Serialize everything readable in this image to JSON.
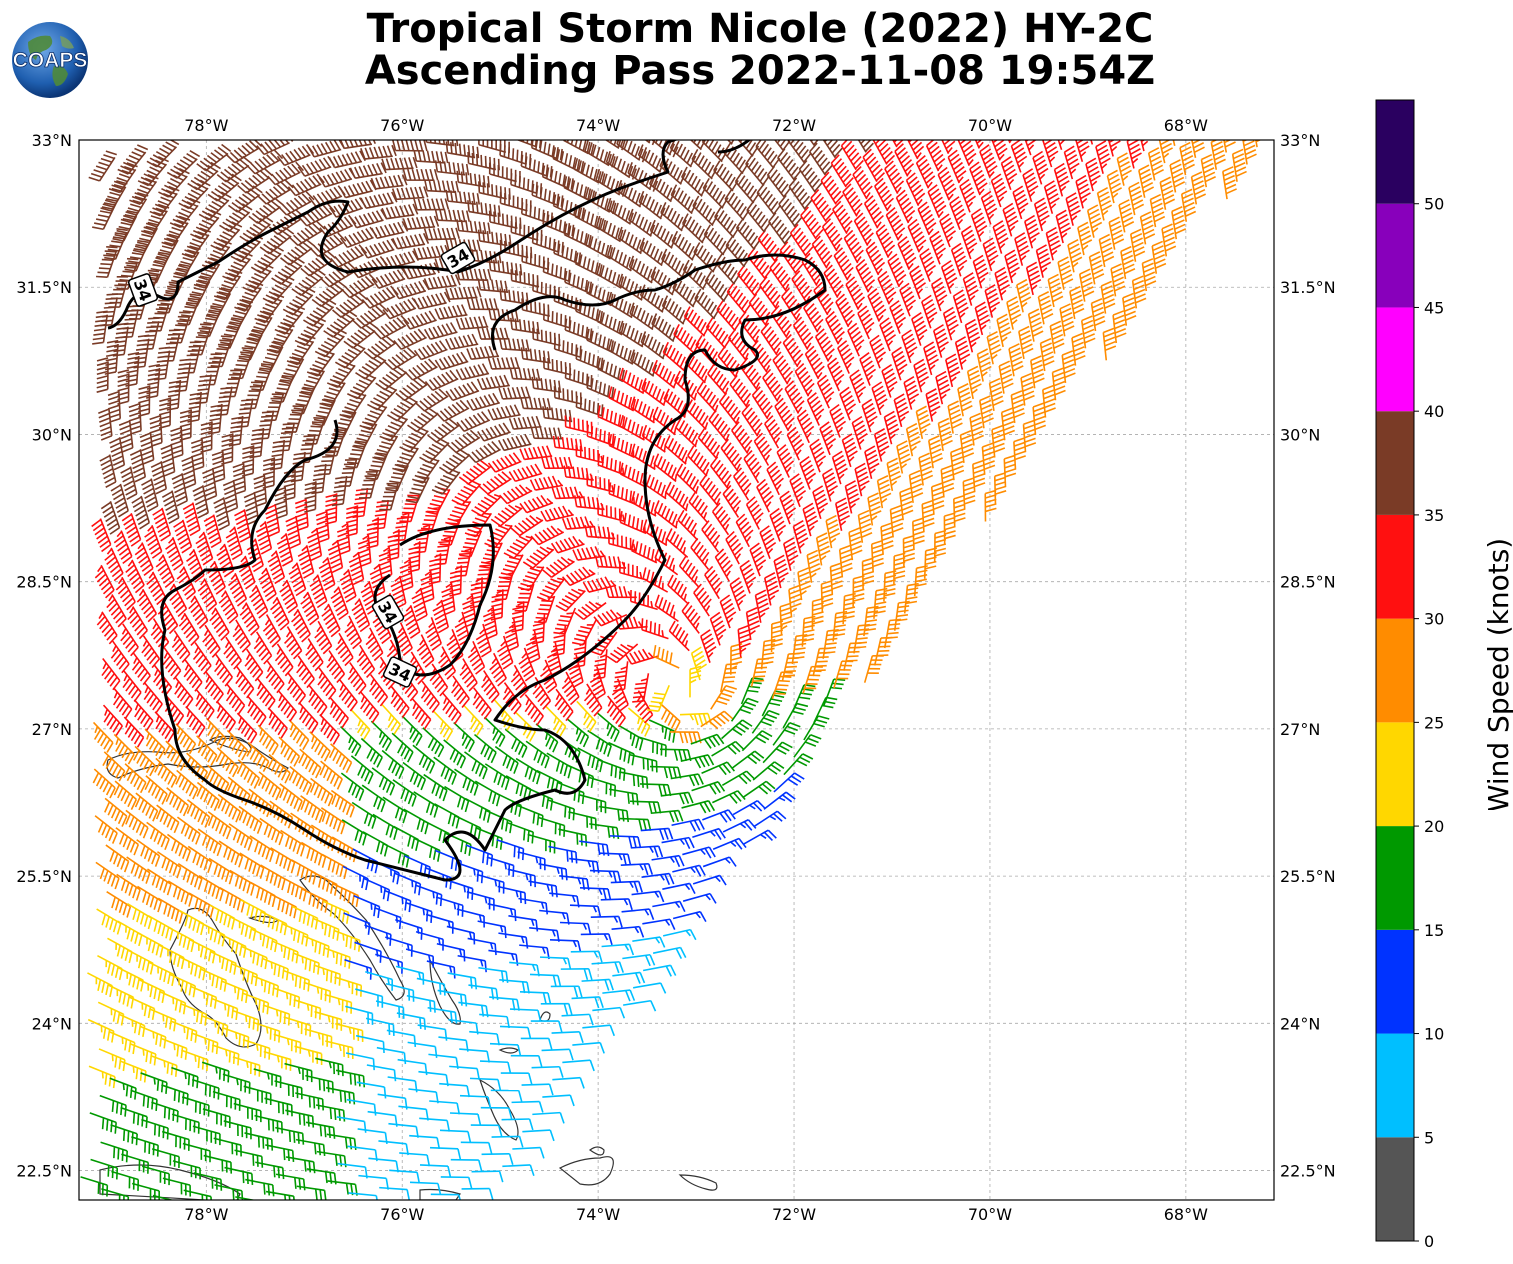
{
  "title": {
    "line1": "Tropical Storm Nicole (2022) HY-2C",
    "line2": "Ascending Pass 2022-11-08 19:54Z"
  },
  "logo": {
    "text": "COAPS",
    "icon": "globe-icon"
  },
  "map": {
    "lon_range": [
      -79.3,
      -67.1
    ],
    "lat_range": [
      22.2,
      33.0
    ],
    "x_ticks": [
      "78°W",
      "76°W",
      "74°W",
      "72°W",
      "70°W",
      "68°W"
    ],
    "x_tick_values": [
      -78,
      -76,
      -74,
      -72,
      -70,
      -68
    ],
    "y_ticks": [
      "33°N",
      "31.5°N",
      "30°N",
      "28.5°N",
      "27°N",
      "25.5°N",
      "24°N",
      "22.5°N"
    ],
    "y_tick_values": [
      33,
      31.5,
      30,
      28.5,
      27,
      25.5,
      24,
      22.5
    ],
    "gridlines": true,
    "storm_center": {
      "lon": -73.1,
      "lat": 27.3
    },
    "contour_label": "34",
    "contour_label_count": 4
  },
  "colorbar": {
    "label": "Wind Speed (knots)",
    "ticks": [
      "0",
      "5",
      "10",
      "15",
      "20",
      "25",
      "30",
      "35",
      "40",
      "45",
      "50"
    ],
    "bins": [
      {
        "min": 0,
        "max": 5,
        "color": "#555555"
      },
      {
        "min": 5,
        "max": 10,
        "color": "#00bfff"
      },
      {
        "min": 10,
        "max": 15,
        "color": "#0033ff"
      },
      {
        "min": 15,
        "max": 20,
        "color": "#009900"
      },
      {
        "min": 20,
        "max": 25,
        "color": "#ffd700"
      },
      {
        "min": 25,
        "max": 30,
        "color": "#ff8c00"
      },
      {
        "min": 30,
        "max": 35,
        "color": "#ff1010"
      },
      {
        "min": 35,
        "max": 40,
        "color": "#7a3b26"
      },
      {
        "min": 40,
        "max": 45,
        "color": "#ff00ff"
      },
      {
        "min": 45,
        "max": 50,
        "color": "#8800bb"
      },
      {
        "min": 50,
        "max": 55,
        "color": "#2a0060"
      }
    ]
  }
}
